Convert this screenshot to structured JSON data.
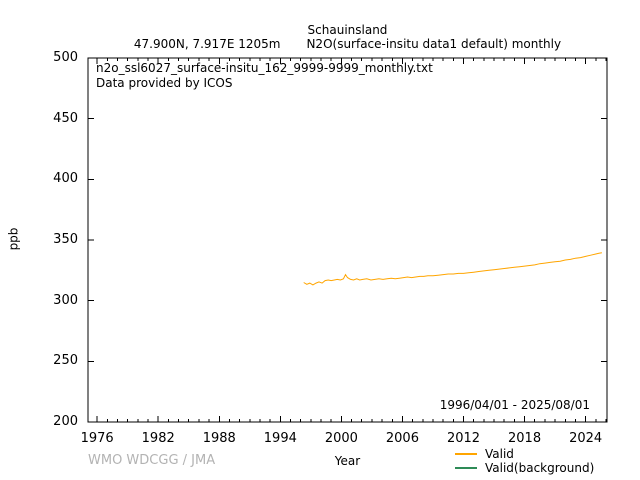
{
  "header": {
    "station": "Schauinsland",
    "location": "47.900N, 7.917E 1205m",
    "parameter": "N2O(surface-insitu data1 default) monthly"
  },
  "plot_annotations": {
    "filename": "n2o_ssl6027_surface-insitu_162_9999-9999_monthly.txt",
    "provider": "Data provided by ICOS",
    "date_range": "1996/04/01 - 2025/08/01"
  },
  "axes": {
    "xlabel": "Year",
    "ylabel": "ppb"
  },
  "footer": {
    "watermark": "WMO WDCGG / JMA"
  },
  "legend": {
    "items": [
      {
        "label": "Valid",
        "color": "#FFA500"
      },
      {
        "label": "Valid(background)",
        "color": "#2E8B57"
      }
    ]
  },
  "chart_data": {
    "type": "line",
    "title": "Schauinsland",
    "subtitle": "47.900N, 7.917E 1205m  N2O(surface-insitu data1 default) monthly",
    "xlabel": "Year",
    "ylabel": "ppb",
    "xlim": [
      1975.1,
      2026.1
    ],
    "ylim": [
      200,
      500
    ],
    "x_major_ticks": [
      1976,
      1982,
      1988,
      1994,
      2000,
      2006,
      2012,
      2018,
      2024
    ],
    "x_minor_step": 1,
    "y_major_ticks": [
      200,
      250,
      300,
      350,
      400,
      450,
      500
    ],
    "grid": false,
    "legend_position": "bottom-right-outside",
    "annotation": "1996/04/01 - 2025/08/01",
    "series": [
      {
        "name": "Valid",
        "color": "#FFA500",
        "x": [
          1996.3,
          1996.6,
          1996.9,
          1997.2,
          1997.5,
          1997.8,
          1998.1,
          1998.4,
          1998.7,
          1999.0,
          1999.3,
          1999.6,
          1999.9,
          2000.2,
          2000.4,
          2000.6,
          2000.9,
          2001.2,
          2001.5,
          2001.8,
          2002.1,
          2002.5,
          2002.9,
          2003.3,
          2003.7,
          2004.1,
          2004.5,
          2004.9,
          2005.3,
          2005.7,
          2006.1,
          2006.5,
          2006.9,
          2007.3,
          2007.7,
          2008.1,
          2008.5,
          2009.0,
          2009.5,
          2010.0,
          2010.5,
          2011.0,
          2011.5,
          2012.0,
          2012.5,
          2013.0,
          2013.5,
          2014.0,
          2014.5,
          2015.0,
          2015.5,
          2016.0,
          2016.5,
          2017.0,
          2017.5,
          2018.0,
          2018.5,
          2019.0,
          2019.5,
          2020.0,
          2020.5,
          2021.0,
          2021.5,
          2022.0,
          2022.5,
          2023.0,
          2023.5,
          2024.0,
          2024.5,
          2025.0,
          2025.3,
          2025.6
        ],
        "y": [
          315.0,
          313.5,
          314.5,
          313.0,
          314.5,
          315.5,
          314.5,
          316.5,
          317.0,
          316.5,
          317.0,
          317.5,
          317.0,
          318.0,
          321.5,
          319.0,
          317.5,
          317.0,
          318.0,
          317.0,
          317.5,
          318.0,
          317.0,
          317.5,
          318.0,
          317.5,
          318.0,
          318.5,
          318.0,
          318.5,
          319.0,
          319.5,
          319.0,
          319.5,
          320.0,
          320.0,
          320.5,
          320.5,
          321.0,
          321.5,
          322.0,
          322.0,
          322.5,
          322.5,
          323.0,
          323.5,
          324.0,
          324.5,
          325.0,
          325.5,
          326.0,
          326.5,
          327.0,
          327.5,
          328.0,
          328.5,
          329.0,
          329.5,
          330.5,
          331.0,
          331.5,
          332.0,
          332.5,
          333.5,
          334.0,
          335.0,
          335.5,
          336.5,
          337.5,
          338.5,
          339.0,
          339.5
        ]
      },
      {
        "name": "Valid(background)",
        "color": "#2E8B57",
        "x": [],
        "y": []
      }
    ]
  }
}
